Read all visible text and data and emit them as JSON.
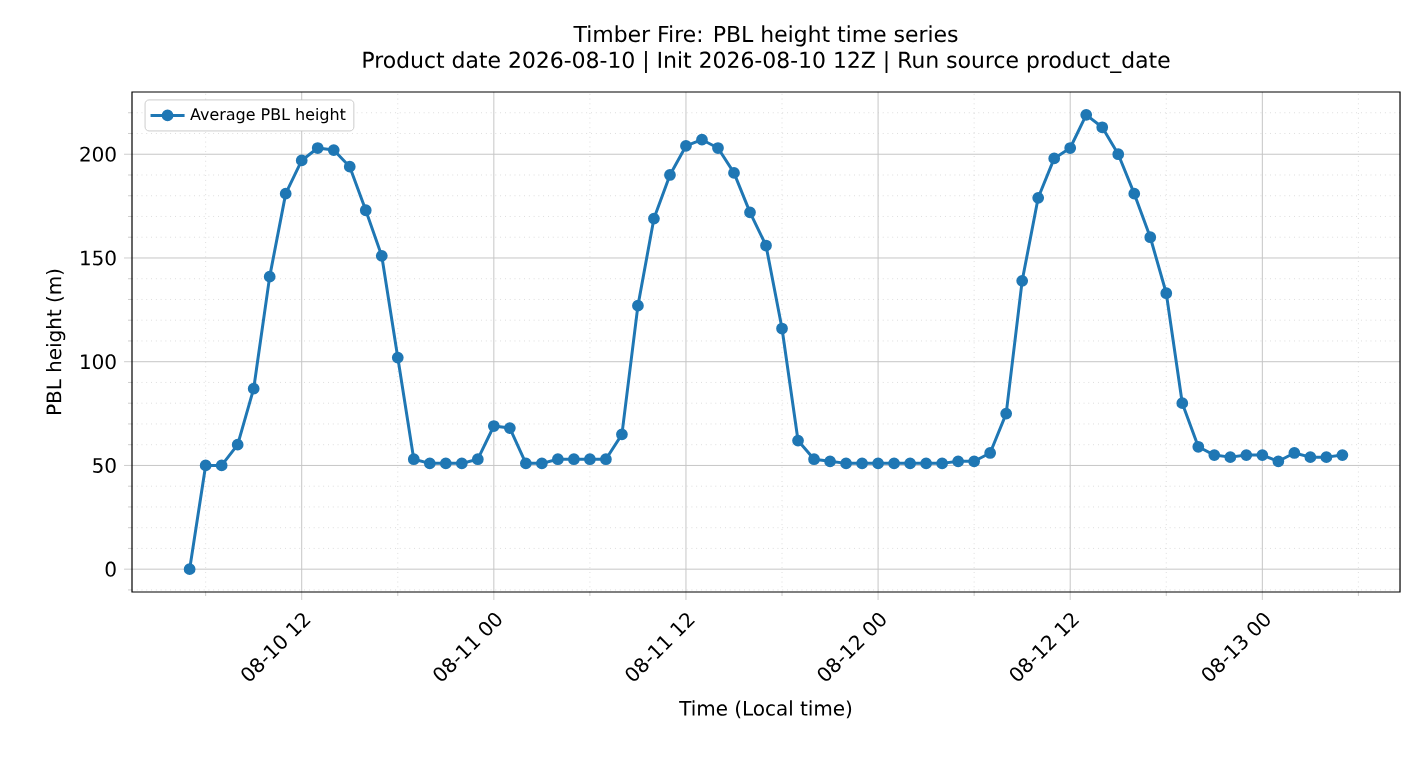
{
  "chart_data": {
    "type": "line",
    "title": "Timber Fire: PBL height time series",
    "subtitle": "Product date 2026-08-10 | Init 2026-08-10 12Z | Run source product_date",
    "xlabel": "Time (Local time)",
    "ylabel": "PBL height (m)",
    "x": [
      "2026-08-10T05:00",
      "2026-08-10T06:00",
      "2026-08-10T07:00",
      "2026-08-10T08:00",
      "2026-08-10T09:00",
      "2026-08-10T10:00",
      "2026-08-10T11:00",
      "2026-08-10T12:00",
      "2026-08-10T13:00",
      "2026-08-10T14:00",
      "2026-08-10T15:00",
      "2026-08-10T16:00",
      "2026-08-10T17:00",
      "2026-08-10T18:00",
      "2026-08-10T19:00",
      "2026-08-10T20:00",
      "2026-08-10T21:00",
      "2026-08-10T22:00",
      "2026-08-10T23:00",
      "2026-08-11T00:00",
      "2026-08-11T01:00",
      "2026-08-11T02:00",
      "2026-08-11T03:00",
      "2026-08-11T04:00",
      "2026-08-11T05:00",
      "2026-08-11T06:00",
      "2026-08-11T07:00",
      "2026-08-11T08:00",
      "2026-08-11T09:00",
      "2026-08-11T10:00",
      "2026-08-11T11:00",
      "2026-08-11T12:00",
      "2026-08-11T13:00",
      "2026-08-11T14:00",
      "2026-08-11T15:00",
      "2026-08-11T16:00",
      "2026-08-11T17:00",
      "2026-08-11T18:00",
      "2026-08-11T19:00",
      "2026-08-11T20:00",
      "2026-08-11T21:00",
      "2026-08-11T22:00",
      "2026-08-11T23:00",
      "2026-08-12T00:00",
      "2026-08-12T01:00",
      "2026-08-12T02:00",
      "2026-08-12T03:00",
      "2026-08-12T04:00",
      "2026-08-12T05:00",
      "2026-08-12T06:00",
      "2026-08-12T07:00",
      "2026-08-12T08:00",
      "2026-08-12T09:00",
      "2026-08-12T10:00",
      "2026-08-12T11:00",
      "2026-08-12T12:00",
      "2026-08-12T13:00",
      "2026-08-12T14:00",
      "2026-08-12T15:00",
      "2026-08-12T16:00",
      "2026-08-12T17:00",
      "2026-08-12T18:00",
      "2026-08-12T19:00",
      "2026-08-12T20:00",
      "2026-08-12T21:00",
      "2026-08-12T22:00",
      "2026-08-12T23:00",
      "2026-08-13T00:00",
      "2026-08-13T01:00",
      "2026-08-13T02:00",
      "2026-08-13T03:00",
      "2026-08-13T04:00",
      "2026-08-13T05:00"
    ],
    "series": [
      {
        "name": "Average PBL height",
        "color": "#1f77b4",
        "values": [
          0,
          50,
          50,
          60,
          87,
          141,
          181,
          197,
          203,
          202,
          194,
          173,
          151,
          102,
          53,
          51,
          51,
          51,
          53,
          69,
          68,
          51,
          51,
          53,
          53,
          53,
          53,
          65,
          127,
          169,
          190,
          204,
          207,
          203,
          191,
          172,
          156,
          116,
          62,
          53,
          52,
          51,
          51,
          51,
          51,
          51,
          51,
          51,
          52,
          52,
          56,
          75,
          139,
          179,
          198,
          203,
          219,
          213,
          200,
          181,
          160,
          133,
          80,
          59,
          55,
          54,
          55,
          55,
          52,
          56,
          54,
          54,
          55
        ]
      }
    ],
    "xlim": [
      "2026-08-10T01:24",
      "2026-08-13T08:36"
    ],
    "xticks": [
      {
        "value": "2026-08-10T06:00",
        "label": null
      },
      {
        "value": "2026-08-10T12:00",
        "label": "08-10 12"
      },
      {
        "value": "2026-08-10T18:00",
        "label": null
      },
      {
        "value": "2026-08-11T00:00",
        "label": "08-11 00"
      },
      {
        "value": "2026-08-11T06:00",
        "label": null
      },
      {
        "value": "2026-08-11T12:00",
        "label": "08-11 12"
      },
      {
        "value": "2026-08-11T18:00",
        "label": null
      },
      {
        "value": "2026-08-12T00:00",
        "label": "08-12 00"
      },
      {
        "value": "2026-08-12T06:00",
        "label": null
      },
      {
        "value": "2026-08-12T12:00",
        "label": "08-12 12"
      },
      {
        "value": "2026-08-12T18:00",
        "label": null
      },
      {
        "value": "2026-08-13T00:00",
        "label": "08-13 00"
      },
      {
        "value": "2026-08-13T06:00",
        "label": null
      }
    ],
    "ylim": [
      -11,
      230
    ],
    "yticks": [
      0,
      50,
      100,
      150,
      200,
      {
        "value": -10,
        "label": null
      },
      {
        "value": 10,
        "label": null
      },
      {
        "value": 20,
        "label": null
      },
      {
        "value": 30,
        "label": null
      },
      {
        "value": 40,
        "label": null
      },
      {
        "value": 60,
        "label": null
      },
      {
        "value": 70,
        "label": null
      },
      {
        "value": 80,
        "label": null
      },
      {
        "value": 90,
        "label": null
      },
      {
        "value": 110,
        "label": null
      },
      {
        "value": 120,
        "label": null
      },
      {
        "value": 130,
        "label": null
      },
      {
        "value": 140,
        "label": null
      },
      {
        "value": 160,
        "label": null
      },
      {
        "value": 170,
        "label": null
      },
      {
        "value": 180,
        "label": null
      },
      {
        "value": 190,
        "label": null
      },
      {
        "value": 210,
        "label": null
      },
      {
        "value": 220,
        "label": null
      }
    ],
    "grid": true,
    "legend": "top left",
    "marker": "circle",
    "line_style": "solid"
  }
}
